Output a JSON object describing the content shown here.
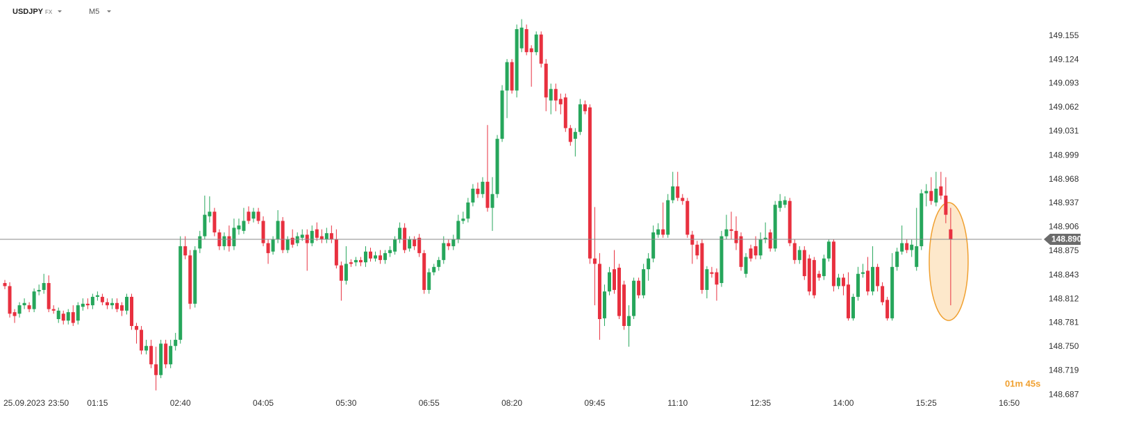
{
  "chart_data": {
    "type": "candlestick",
    "symbol": "USDJPY",
    "market": "FX",
    "timeframe": "M5",
    "date_label": "25.09.2023",
    "countdown": "01m 45s",
    "colors": {
      "up": "#26a65b",
      "down": "#e8303f"
    },
    "x": [
      "22:55",
      "23:00",
      "23:05",
      "23:10",
      "23:15",
      "23:20",
      "23:25",
      "23:30",
      "23:35",
      "23:40",
      "23:45",
      "23:50",
      "00:40",
      "00:45",
      "00:50",
      "00:55",
      "01:00",
      "01:05",
      "01:10",
      "01:15",
      "01:20",
      "01:25",
      "01:30",
      "01:35",
      "01:40",
      "01:45",
      "01:50",
      "01:55",
      "02:00",
      "02:05",
      "02:10",
      "02:15",
      "02:20",
      "02:25",
      "02:30",
      "02:35",
      "02:40",
      "02:45",
      "02:50",
      "02:55",
      "03:00",
      "03:05",
      "03:10",
      "03:15",
      "03:20",
      "03:25",
      "03:30",
      "03:35",
      "03:40",
      "03:45",
      "03:50",
      "03:55",
      "04:00",
      "04:05",
      "04:10",
      "04:15",
      "04:20",
      "04:25",
      "04:30",
      "04:35",
      "04:40",
      "04:45",
      "04:50",
      "04:55",
      "05:00",
      "05:05",
      "05:10",
      "05:15",
      "05:20",
      "05:25",
      "05:30",
      "05:35",
      "05:40",
      "05:45",
      "05:50",
      "05:55",
      "06:00",
      "06:05",
      "06:10",
      "06:15",
      "06:20",
      "06:25",
      "06:30",
      "06:35",
      "06:40",
      "06:45",
      "06:50",
      "06:55",
      "07:00",
      "07:05",
      "07:10",
      "07:15",
      "07:20",
      "07:25",
      "07:30",
      "07:35",
      "07:40",
      "07:45",
      "07:50",
      "07:55",
      "08:00",
      "08:05",
      "08:10",
      "08:15",
      "08:20",
      "08:25",
      "08:30",
      "08:35",
      "08:40",
      "08:45",
      "08:50",
      "08:55",
      "09:00",
      "09:05",
      "09:10",
      "09:15",
      "09:20",
      "09:25",
      "09:30",
      "09:35",
      "09:40",
      "09:45",
      "09:50",
      "09:55",
      "10:00",
      "10:05",
      "10:10",
      "10:15",
      "10:20",
      "10:25",
      "10:30",
      "10:35",
      "10:40",
      "10:45",
      "10:50",
      "10:55",
      "11:00",
      "11:05",
      "11:10",
      "11:15",
      "11:20",
      "11:25",
      "11:30",
      "11:35",
      "11:40",
      "11:45",
      "11:50",
      "11:55",
      "12:00",
      "12:05",
      "12:10",
      "12:15",
      "12:20",
      "12:25",
      "12:30",
      "12:35",
      "12:40",
      "12:45",
      "12:50",
      "12:55",
      "13:00",
      "13:05",
      "13:10",
      "13:15",
      "13:20",
      "13:25",
      "13:30",
      "13:35",
      "13:40",
      "13:45",
      "13:50",
      "13:55",
      "14:00",
      "14:05",
      "14:10",
      "14:15",
      "14:20",
      "14:25",
      "14:30",
      "14:35",
      "14:40",
      "14:45",
      "14:50",
      "14:55",
      "15:00",
      "15:05",
      "15:10",
      "15:15",
      "15:20",
      "15:25",
      "15:30",
      "15:35",
      "15:40",
      "15:45",
      "15:50"
    ],
    "open": [
      148.833,
      148.829,
      148.795,
      148.793,
      148.804,
      148.804,
      148.799,
      148.822,
      148.824,
      148.833,
      148.799,
      148.786,
      148.793,
      148.784,
      148.795,
      148.784,
      148.802,
      148.806,
      148.804,
      148.815,
      148.815,
      148.808,
      148.804,
      148.807,
      148.804,
      148.797,
      148.815,
      148.777,
      148.772,
      148.745,
      148.751,
      148.727,
      148.713,
      148.754,
      148.727,
      148.751,
      148.759,
      148.881,
      148.869,
      148.806,
      148.878,
      148.894,
      148.92,
      148.926,
      148.899,
      148.881,
      148.894,
      148.881,
      148.903,
      148.901,
      148.926,
      148.917,
      148.926,
      148.914,
      148.885,
      148.874,
      148.89,
      148.914,
      148.876,
      148.892,
      148.885,
      148.892,
      148.896,
      148.885,
      148.903,
      148.894,
      148.89,
      148.898,
      148.89,
      148.856,
      148.836,
      148.86,
      148.86,
      148.863,
      148.86,
      148.874,
      148.865,
      148.869,
      148.863,
      148.872,
      148.874,
      148.89,
      148.905,
      148.878,
      148.89,
      148.892,
      148.872,
      148.824,
      148.847,
      148.854,
      148.863,
      148.885,
      148.881,
      148.89,
      148.914,
      148.917,
      148.938,
      148.956,
      148.949,
      148.965,
      148.931,
      148.949,
      149.021,
      149.084,
      149.121,
      149.084,
      149.139,
      149.164,
      149.139,
      149.134,
      149.157,
      149.119,
      149.071,
      149.086,
      149.073,
      149.075,
      149.035,
      149.021,
      149.03,
      149.066,
      149.062,
      148.865,
      148.858,
      148.787,
      148.822,
      148.851,
      148.853,
      148.831,
      148.777,
      148.79,
      148.836,
      148.817,
      148.851,
      148.865,
      148.896,
      148.903,
      148.896,
      148.941,
      148.959,
      148.944,
      148.94,
      148.896,
      148.883,
      148.885,
      148.824,
      148.847,
      148.847,
      148.833,
      148.894,
      148.903,
      148.901,
      148.894,
      148.845,
      148.878,
      148.881,
      148.869,
      148.89,
      148.899,
      148.878,
      148.931,
      148.935,
      148.94,
      148.885,
      148.863,
      148.876,
      148.865,
      148.863,
      148.845,
      148.842,
      148.865,
      148.887,
      148.829,
      148.84,
      148.831,
      148.787,
      148.815,
      148.845,
      148.849,
      148.822,
      148.854,
      148.829,
      148.811,
      148.787,
      148.854,
      148.874,
      148.885,
      148.876,
      148.854,
      148.881,
      148.95,
      148.953,
      148.938,
      148.959,
      148.947,
      148.903
    ],
    "high": [
      148.837,
      148.834,
      148.799,
      148.808,
      148.813,
      148.808,
      148.826,
      148.831,
      148.845,
      148.843,
      148.804,
      148.801,
      148.797,
      148.799,
      148.804,
      148.808,
      148.813,
      148.813,
      148.819,
      148.822,
      148.819,
      148.813,
      148.813,
      148.813,
      148.808,
      148.819,
      148.819,
      148.781,
      148.777,
      148.759,
      148.759,
      148.75,
      148.759,
      148.759,
      148.759,
      148.768,
      148.894,
      148.894,
      148.876,
      148.881,
      148.901,
      148.947,
      148.946,
      148.931,
      148.903,
      148.899,
      148.908,
      148.917,
      148.917,
      148.931,
      148.933,
      148.931,
      148.931,
      148.92,
      148.89,
      148.894,
      148.928,
      148.919,
      148.894,
      148.903,
      148.899,
      148.903,
      148.903,
      148.908,
      148.912,
      148.903,
      148.905,
      148.908,
      148.903,
      148.861,
      148.881,
      148.864,
      148.867,
      148.867,
      148.881,
      148.879,
      148.874,
      148.876,
      148.876,
      148.881,
      148.894,
      148.912,
      148.911,
      148.894,
      148.894,
      148.897,
      148.876,
      148.852,
      148.858,
      148.867,
      148.894,
      148.89,
      148.896,
      148.922,
      148.926,
      148.944,
      148.962,
      148.964,
      148.971,
      149.039,
      148.971,
      149.026,
      149.091,
      149.125,
      149.125,
      149.17,
      149.177,
      149.17,
      149.143,
      149.161,
      149.161,
      149.125,
      149.093,
      149.093,
      149.08,
      149.08,
      149.039,
      149.035,
      149.073,
      149.071,
      149.066,
      148.932,
      148.872,
      148.831,
      148.854,
      148.876,
      148.858,
      148.836,
      148.804,
      148.84,
      148.84,
      148.858,
      148.872,
      148.908,
      148.911,
      148.938,
      148.949,
      148.978,
      148.978,
      148.949,
      148.944,
      148.901,
      148.888,
      148.89,
      148.855,
      148.854,
      148.852,
      148.901,
      148.922,
      148.926,
      148.92,
      148.899,
      148.872,
      148.883,
      148.894,
      148.899,
      148.912,
      148.903,
      148.94,
      148.949,
      148.946,
      148.944,
      148.89,
      148.881,
      148.881,
      148.87,
      148.867,
      148.849,
      148.87,
      148.89,
      148.89,
      148.845,
      148.845,
      148.847,
      148.819,
      148.854,
      148.858,
      148.867,
      148.881,
      148.858,
      148.834,
      148.815,
      148.872,
      148.879,
      148.908,
      148.89,
      148.89,
      148.931,
      148.955,
      148.962,
      148.971,
      148.978,
      148.978,
      148.971,
      148.931
    ],
    "low": [
      148.825,
      148.788,
      148.781,
      148.788,
      148.799,
      148.795,
      148.795,
      148.817,
      148.819,
      148.795,
      148.793,
      148.781,
      148.779,
      148.779,
      148.777,
      148.779,
      148.797,
      148.799,
      148.799,
      148.81,
      148.804,
      148.799,
      148.799,
      148.795,
      148.79,
      148.792,
      148.772,
      148.754,
      148.74,
      148.74,
      148.722,
      148.693,
      148.709,
      148.722,
      148.722,
      148.745,
      148.754,
      148.864,
      148.799,
      148.801,
      148.872,
      148.89,
      148.912,
      148.894,
      148.876,
      148.876,
      148.874,
      148.876,
      148.896,
      148.897,
      148.91,
      148.912,
      148.91,
      148.881,
      148.858,
      148.87,
      148.885,
      148.872,
      148.872,
      148.879,
      148.881,
      148.888,
      148.849,
      148.881,
      148.888,
      148.885,
      148.885,
      148.885,
      148.852,
      148.81,
      148.831,
      148.854,
      148.855,
      148.855,
      148.854,
      148.861,
      148.861,
      148.858,
      148.858,
      148.867,
      148.87,
      148.885,
      148.872,
      148.874,
      148.876,
      148.867,
      148.819,
      148.819,
      148.843,
      148.849,
      148.858,
      148.876,
      148.876,
      148.885,
      148.91,
      148.912,
      148.933,
      148.944,
      148.944,
      148.926,
      148.901,
      148.944,
      149.017,
      149.048,
      149.08,
      149.075,
      149.134,
      149.13,
      149.089,
      149.13,
      149.114,
      149.057,
      149.053,
      149.057,
      149.053,
      149.03,
      149.012,
      148.998,
      149.026,
      149.053,
      148.858,
      148.804,
      148.759,
      148.777,
      148.817,
      148.819,
      148.786,
      148.772,
      148.75,
      148.786,
      148.813,
      148.813,
      148.836,
      148.86,
      148.892,
      148.892,
      148.892,
      148.937,
      148.94,
      148.935,
      148.892,
      148.858,
      148.864,
      148.819,
      148.813,
      148.84,
      148.81,
      148.828,
      148.89,
      148.89,
      148.876,
      148.849,
      148.84,
      148.861,
      148.864,
      148.864,
      148.885,
      148.874,
      148.874,
      148.926,
      148.931,
      148.881,
      148.858,
      148.858,
      148.837,
      148.817,
      148.813,
      148.836,
      148.837,
      148.861,
      148.822,
      148.825,
      148.817,
      148.784,
      148.784,
      148.81,
      148.84,
      148.817,
      148.817,
      148.822,
      148.804,
      148.784,
      148.784,
      148.849,
      148.87,
      148.872,
      148.867,
      148.849,
      148.876,
      148.933,
      148.935,
      148.933,
      148.942,
      148.911,
      148.804
    ],
    "close": [
      148.829,
      148.793,
      148.79,
      148.804,
      148.807,
      148.799,
      148.822,
      148.824,
      148.833,
      148.799,
      148.797,
      148.797,
      148.784,
      148.795,
      148.781,
      148.804,
      148.806,
      148.804,
      148.815,
      148.817,
      148.808,
      148.804,
      148.807,
      148.799,
      148.797,
      148.815,
      148.777,
      148.772,
      148.745,
      148.751,
      148.727,
      148.713,
      148.754,
      148.727,
      148.751,
      148.759,
      148.881,
      148.869,
      148.806,
      148.876,
      148.894,
      148.922,
      148.926,
      148.899,
      148.881,
      148.894,
      148.881,
      148.905,
      148.908,
      148.914,
      148.914,
      148.926,
      148.914,
      148.885,
      148.872,
      148.89,
      148.914,
      148.876,
      148.89,
      148.883,
      148.894,
      148.896,
      148.885,
      148.901,
      148.892,
      148.89,
      148.898,
      148.89,
      148.856,
      148.836,
      148.858,
      148.858,
      148.863,
      148.86,
      148.874,
      148.865,
      148.869,
      148.863,
      148.872,
      148.876,
      148.89,
      148.905,
      148.876,
      148.89,
      148.881,
      148.872,
      148.824,
      148.847,
      148.854,
      148.863,
      148.885,
      148.881,
      148.89,
      148.914,
      148.917,
      148.938,
      148.956,
      148.949,
      148.965,
      148.931,
      148.949,
      149.021,
      149.084,
      149.121,
      149.084,
      149.164,
      149.166,
      149.134,
      149.134,
      149.157,
      149.119,
      149.075,
      149.086,
      149.071,
      149.066,
      149.035,
      149.017,
      149.03,
      149.066,
      149.057,
      148.865,
      148.858,
      148.786,
      148.822,
      148.847,
      148.824,
      148.79,
      148.777,
      148.79,
      148.836,
      148.817,
      148.851,
      148.865,
      148.899,
      148.903,
      148.896,
      148.941,
      148.959,
      148.944,
      148.94,
      148.896,
      148.883,
      148.869,
      148.824,
      148.851,
      148.845,
      148.831,
      148.894,
      148.903,
      148.901,
      148.885,
      148.854,
      148.867,
      148.865,
      148.869,
      148.89,
      148.892,
      148.878,
      148.935,
      148.94,
      148.941,
      148.885,
      148.863,
      148.876,
      148.842,
      148.822,
      148.817,
      148.84,
      148.865,
      148.887,
      148.829,
      148.84,
      148.829,
      148.787,
      148.815,
      148.845,
      148.847,
      148.822,
      148.854,
      148.829,
      148.808,
      148.787,
      148.854,
      148.874,
      148.885,
      148.876,
      148.883,
      148.881,
      148.95,
      148.953,
      148.94,
      148.956,
      148.947,
      148.922,
      148.89
    ],
    "ylim": [
      148.682,
      149.202
    ],
    "yticks": [
      148.687,
      148.719,
      {
        "value": 148.75,
        "label": "148.750"
      },
      148.781,
      148.812,
      148.843,
      148.875,
      148.906,
      148.937,
      148.968,
      148.999,
      149.031,
      149.062,
      149.093,
      149.124,
      149.155
    ],
    "xticks": [
      "23:50",
      "01:15",
      "02:40",
      "04:05",
      "05:30",
      "06:55",
      "08:20",
      "09:45",
      "11:10",
      "12:35",
      "14:00",
      "15:25",
      "16:50"
    ],
    "current_price": {
      "value": 148.89,
      "label": "148.890"
    }
  }
}
